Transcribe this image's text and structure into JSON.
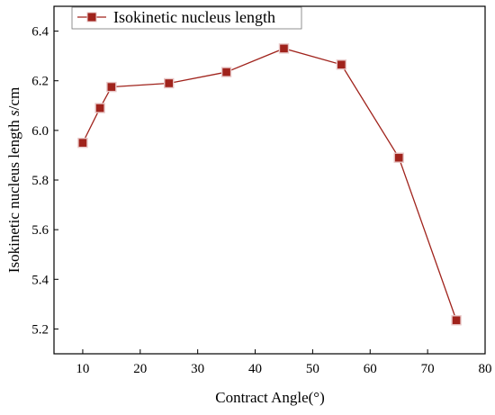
{
  "chart_data": {
    "type": "line",
    "xlabel": "Contract Angle(°)",
    "ylabel_main": "Isokinetic nucleus length ",
    "ylabel_symbol": "s",
    "ylabel_unit": "/cm",
    "xlim": [
      5,
      80
    ],
    "ylim": [
      5.1,
      6.5
    ],
    "x_ticks": [
      10,
      20,
      30,
      40,
      50,
      60,
      70,
      80
    ],
    "y_ticks": [
      5.2,
      5.4,
      5.6,
      5.8,
      6.0,
      6.2,
      6.4
    ],
    "x_tick_labels": [
      "10",
      "20",
      "30",
      "40",
      "50",
      "60",
      "70",
      "80"
    ],
    "y_tick_labels": [
      "5.2",
      "5.4",
      "5.6",
      "5.8",
      "6.0",
      "6.2",
      "6.4"
    ],
    "grid": false,
    "legend_position": "top-left",
    "series": [
      {
        "name": "Isokinetic nucleus length",
        "color": "#a0231c",
        "marker": "square",
        "x": [
          10,
          13,
          15,
          25,
          35,
          45,
          55,
          65,
          75
        ],
        "y": [
          5.95,
          6.09,
          6.175,
          6.19,
          6.235,
          6.33,
          6.265,
          5.89,
          5.235
        ]
      }
    ]
  }
}
